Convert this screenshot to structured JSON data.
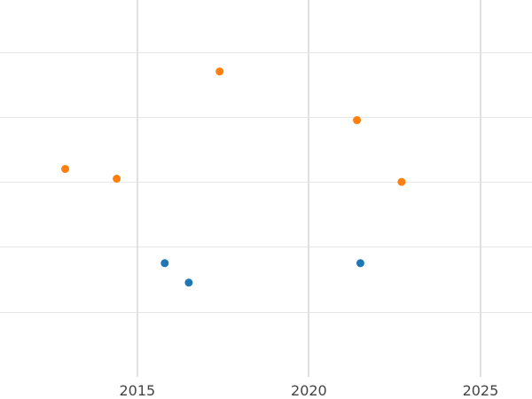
{
  "chart_data": {
    "type": "scatter",
    "title": "",
    "xlabel": "",
    "ylabel": "",
    "grid": true,
    "legend": "none",
    "x_ticks": [
      "2015",
      "2020",
      "2025"
    ],
    "x_tick_values": [
      2015,
      2020,
      2025
    ],
    "y_grid_values": [
      1,
      2,
      3,
      4,
      5
    ],
    "xlim": [
      2011.0,
      2026.5
    ],
    "ylim": [
      0.0,
      5.8
    ],
    "series": [
      {
        "color": "#1f77b4",
        "points": [
          {
            "x": 2015.8,
            "y": 1.75
          },
          {
            "x": 2016.5,
            "y": 1.45
          },
          {
            "x": 2021.5,
            "y": 1.75
          }
        ]
      },
      {
        "color": "#ff7f0e",
        "points": [
          {
            "x": 2012.9,
            "y": 3.2
          },
          {
            "x": 2014.4,
            "y": 3.05
          },
          {
            "x": 2017.4,
            "y": 4.7
          },
          {
            "x": 2021.4,
            "y": 3.95
          },
          {
            "x": 2022.7,
            "y": 3.0
          }
        ]
      }
    ]
  }
}
